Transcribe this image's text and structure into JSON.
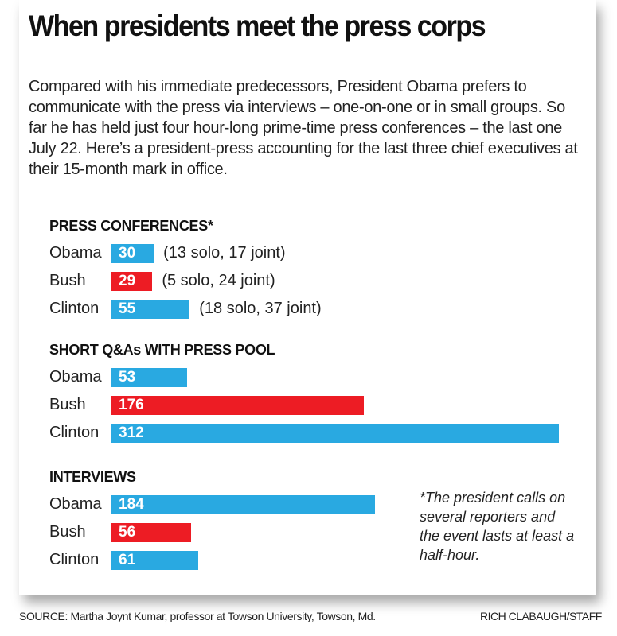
{
  "chart_data": [
    {
      "type": "bar",
      "title": "PRESS CONFERENCES*",
      "categories": [
        "Obama",
        "Bush",
        "Clinton"
      ],
      "values": [
        30,
        29,
        55
      ],
      "notes": [
        "(13 solo, 17 joint)",
        "(5 solo, 24 joint)",
        "(18 solo, 37 joint)"
      ],
      "colors": [
        "#29a9e1",
        "#ed1c24",
        "#29a9e1"
      ]
    },
    {
      "type": "bar",
      "title": "SHORT Q&As WITH PRESS POOL",
      "categories": [
        "Obama",
        "Bush",
        "Clinton"
      ],
      "values": [
        53,
        176,
        312
      ],
      "colors": [
        "#29a9e1",
        "#ed1c24",
        "#29a9e1"
      ]
    },
    {
      "type": "bar",
      "title": "INTERVIEWS",
      "categories": [
        "Obama",
        "Bush",
        "Clinton"
      ],
      "values": [
        184,
        56,
        61
      ],
      "colors": [
        "#29a9e1",
        "#ed1c24",
        "#29a9e1"
      ]
    }
  ],
  "title": "When presidents meet the press corps",
  "intro": "Compared with his immediate predecessors, President Obama prefers to communicate with the press via interviews – one-on-one or in small groups. So far he has held just four hour-long prime-time press conferences – the last one July 22. Here’s a president-press accounting for the last three chief executives at their 15-month mark in office.",
  "footnote": "*The president calls on several reporters and the event lasts at least a half-hour.",
  "source": "SOURCE: Martha Joynt Kumar, professor at Towson University, Towson, Md.",
  "credit": "RICH CLABAUGH/STAFF"
}
